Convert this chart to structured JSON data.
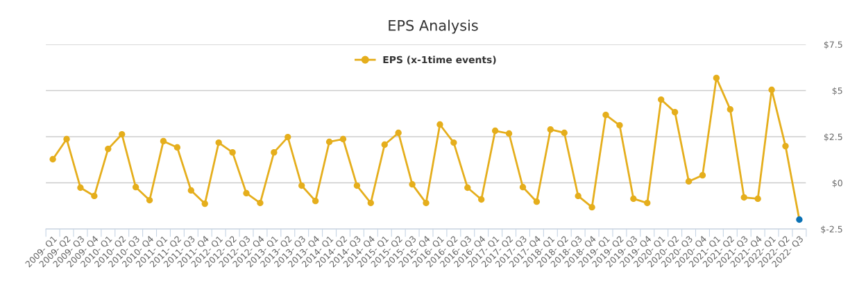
{
  "chart_data": {
    "type": "line",
    "title": "EPS Analysis",
    "categories": [
      "2009- Q1",
      "2009- Q2",
      "2009- Q3",
      "2009- Q4",
      "2010- Q1",
      "2010- Q2",
      "2010- Q3",
      "2010- Q4",
      "2011- Q1",
      "2011- Q2",
      "2011- Q3",
      "2011- Q4",
      "2012- Q1",
      "2012- Q2",
      "2012- Q3",
      "2012- Q4",
      "2013- Q1",
      "2013- Q2",
      "2013- Q3",
      "2013- Q4",
      "2014- Q1",
      "2014- Q2",
      "2014- Q3",
      "2014- Q4",
      "2015- Q1",
      "2015- Q2",
      "2015- Q3",
      "2015- Q4",
      "2016- Q1",
      "2016- Q2",
      "2016- Q3",
      "2016- Q4",
      "2017- Q1",
      "2017- Q2",
      "2017- Q3",
      "2017- Q4",
      "2018- Q1",
      "2018- Q2",
      "2018- Q3",
      "2018- Q4",
      "2019- Q1",
      "2019- Q2",
      "2019- Q3",
      "2019- Q4",
      "2020- Q1",
      "2020- Q2",
      "2020- Q3",
      "2020- Q4",
      "2021- Q1",
      "2021- Q2",
      "2021- Q3",
      "2021- Q4",
      "2022- Q1",
      "2022- Q2",
      "2022- Q3"
    ],
    "series": [
      {
        "name": "EPS (x-1time events)",
        "color": "#e5ae1c",
        "colors": [
          "#e5ae1c",
          "#e5ae1c",
          "#e5ae1c",
          "#e5ae1c",
          "#e5ae1c",
          "#e5ae1c",
          "#e5ae1c",
          "#e5ae1c",
          "#e5ae1c",
          "#e5ae1c",
          "#e5ae1c",
          "#e5ae1c",
          "#e5ae1c",
          "#e5ae1c",
          "#e5ae1c",
          "#e5ae1c",
          "#e5ae1c",
          "#e5ae1c",
          "#e5ae1c",
          "#e5ae1c",
          "#e5ae1c",
          "#e5ae1c",
          "#e5ae1c",
          "#e5ae1c",
          "#e5ae1c",
          "#e5ae1c",
          "#e5ae1c",
          "#e5ae1c",
          "#e5ae1c",
          "#e5ae1c",
          "#e5ae1c",
          "#e5ae1c",
          "#e5ae1c",
          "#e5ae1c",
          "#e5ae1c",
          "#e5ae1c",
          "#e5ae1c",
          "#e5ae1c",
          "#e5ae1c",
          "#e5ae1c",
          "#e5ae1c",
          "#e5ae1c",
          "#e5ae1c",
          "#e5ae1c",
          "#e5ae1c",
          "#e5ae1c",
          "#e5ae1c",
          "#e5ae1c",
          "#e5ae1c",
          "#e5ae1c",
          "#e5ae1c",
          "#e5ae1c",
          "#e5ae1c",
          "#e5ae1c",
          "#0b72b5"
        ],
        "values": [
          1.28,
          2.37,
          -0.26,
          -0.71,
          1.84,
          2.63,
          -0.23,
          -0.94,
          2.26,
          1.92,
          -0.41,
          -1.13,
          2.18,
          1.65,
          -0.56,
          -1.09,
          1.65,
          2.48,
          -0.15,
          -0.98,
          2.22,
          2.37,
          -0.15,
          -1.09,
          2.07,
          2.71,
          -0.08,
          -1.09,
          3.16,
          2.18,
          -0.26,
          -0.9,
          2.82,
          2.67,
          -0.23,
          -1.02,
          2.89,
          2.71,
          -0.71,
          -1.32,
          3.68,
          3.12,
          -0.86,
          -1.09,
          4.51,
          3.83,
          0.08,
          0.41,
          5.68,
          3.98,
          -0.79,
          -0.86,
          5.04,
          1.99,
          -1.99
        ]
      }
    ],
    "ylim": [
      -2.5,
      7.5
    ],
    "yticks": [
      {
        "value": -2.5,
        "label": "$-2.5"
      },
      {
        "value": 0,
        "label": "$0"
      },
      {
        "value": 2.5,
        "label": "$2.5"
      },
      {
        "value": 5,
        "label": "$5"
      },
      {
        "value": 7.5,
        "label": "$7.5"
      }
    ],
    "grid": "y",
    "legend": "top",
    "marker": "circle",
    "line_style": "solid"
  }
}
